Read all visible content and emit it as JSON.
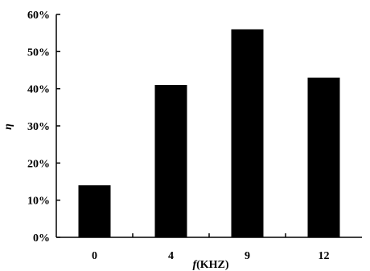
{
  "chart_data": {
    "type": "bar",
    "categories": [
      "0",
      "4",
      "9",
      "12"
    ],
    "values": [
      14,
      41,
      56,
      43
    ],
    "xlabel_italic": "f",
    "xlabel_rest": "(KHZ)",
    "ylabel": "η",
    "ylim": [
      0,
      60
    ],
    "yticks": [
      0,
      10,
      20,
      30,
      40,
      50,
      60
    ],
    "ytick_labels": [
      "0%",
      "10%",
      "20%",
      "30%",
      "40%",
      "50%",
      "60%"
    ],
    "grid": false,
    "legend": "none",
    "bar_color": "#000000"
  }
}
